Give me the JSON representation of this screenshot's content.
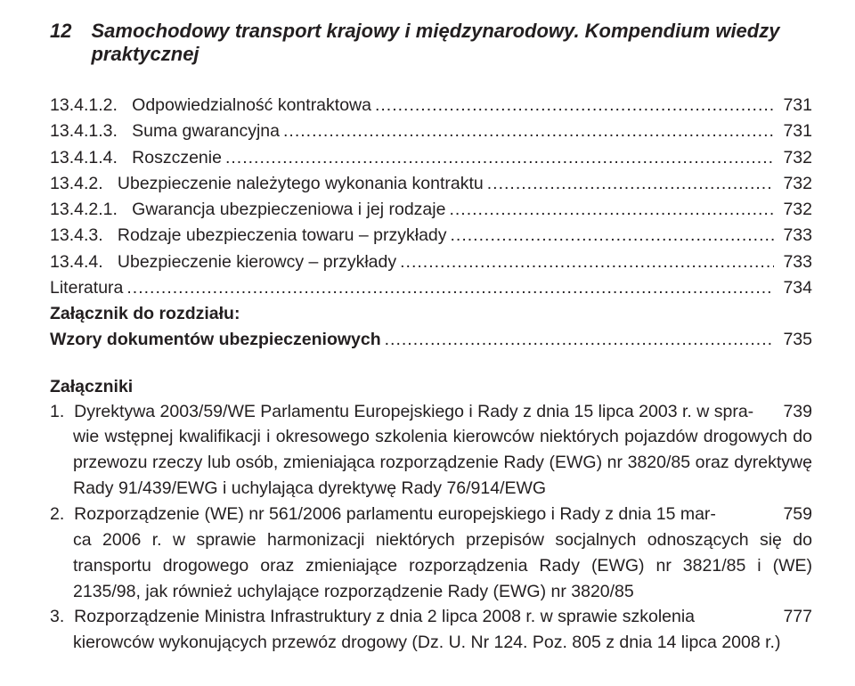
{
  "header": {
    "page_number": "12",
    "title": "Samochodowy transport krajowy i międzynarodowy. Kompendium wiedzy praktycznej"
  },
  "toc": [
    {
      "num": "13.4.1.2.",
      "label": "Odpowiedzialność kontraktowa",
      "page": "731",
      "bold": false
    },
    {
      "num": "13.4.1.3.",
      "label": "Suma gwarancyjna",
      "page": "731",
      "bold": false
    },
    {
      "num": "13.4.1.4.",
      "label": "Roszczenie",
      "page": "732",
      "bold": false
    },
    {
      "num": "13.4.2.",
      "label": "Ubezpieczenie należytego wykonania kontraktu",
      "page": "732",
      "bold": false
    },
    {
      "num": "13.4.2.1.",
      "label": "Gwarancja ubezpieczeniowa i jej rodzaje",
      "page": "732",
      "bold": false
    },
    {
      "num": "13.4.3.",
      "label": "Rodzaje ubezpieczenia towaru – przykłady",
      "page": "733",
      "bold": false
    },
    {
      "num": "13.4.4.",
      "label": "Ubezpieczenie kierowcy – przykłady",
      "page": "733",
      "bold": false
    },
    {
      "num": "",
      "label": "Literatura",
      "page": "734",
      "bold": false
    },
    {
      "num": "",
      "label": "Załącznik do rozdziału:",
      "page": "",
      "bold": true,
      "nodots": true
    },
    {
      "num": "",
      "label": "Wzory dokumentów ubezpieczeniowych",
      "page": "735",
      "bold": true
    }
  ],
  "attachments_heading": "Załączniki",
  "attachments": [
    {
      "num": "1.",
      "first_line": "Dyrektywa 2003/59/WE Parlamentu Europejskiego i Rady z dnia 15 lipca 2003 r. w spra-",
      "page": "739",
      "rest": "wie wstępnej kwalifikacji i okresowego szkolenia kierowców niektórych pojazdów drogowych do przewozu rzeczy lub osób, zmieniająca rozporządzenie Rady (EWG) nr 3820/85 oraz dyrektywę Rady 91/439/EWG i uchylająca dyrektywę Rady 76/914/EWG"
    },
    {
      "num": "2.",
      "first_line": "Rozporządzenie (WE) nr 561/2006 parlamentu europejskiego i Rady z dnia 15 mar-",
      "page": "759",
      "rest": "ca 2006 r. w sprawie harmonizacji niektórych przepisów socjalnych odnoszących się do transportu drogowego oraz zmieniające rozporządzenia Rady (EWG) nr 3821/85 i (WE) 2135/98, jak również uchylające rozporządzenie Rady (EWG) nr 3820/85"
    },
    {
      "num": "3.",
      "first_line": "Rozporządzenie Ministra Infrastruktury z dnia 2 lipca 2008 r. w sprawie szkolenia",
      "page": "777",
      "rest": "kierowców wykonujących przewóz drogowy (Dz. U. Nr 124.  Poz. 805 z dnia 14 lipca 2008 r.)"
    }
  ],
  "dots": "............................................................................................................................................................................"
}
